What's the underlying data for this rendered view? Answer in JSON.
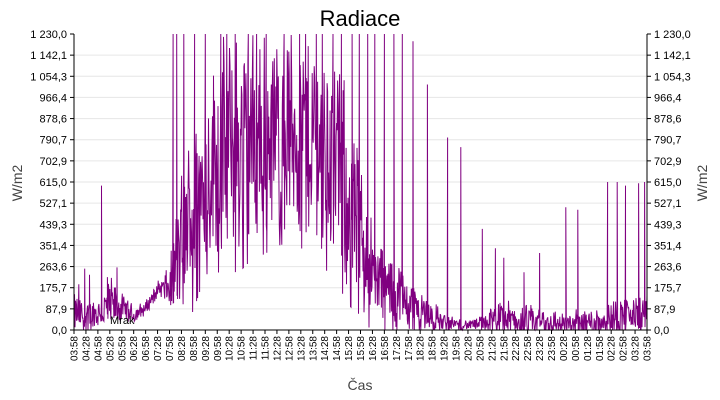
{
  "chart_data": {
    "type": "line",
    "title": "Radiace",
    "xlabel": "Čas",
    "ylabel_left": "W/m2",
    "ylabel_right": "W/m2",
    "y_ticks": [
      "0,0",
      "87,9",
      "175,7",
      "263,6",
      "351,4",
      "439,3",
      "527,1",
      "615,0",
      "702,9",
      "790,7",
      "878,6",
      "966,4",
      "1 054,3",
      "1 142,1",
      "1 230,0"
    ],
    "ylim": [
      0,
      1230
    ],
    "x_ticks": [
      "03:58",
      "04:28",
      "04:58",
      "05:28",
      "05:58",
      "06:28",
      "06:58",
      "07:28",
      "07:58",
      "08:28",
      "08:58",
      "09:28",
      "09:58",
      "10:28",
      "10:58",
      "11:28",
      "11:58",
      "12:28",
      "12:58",
      "13:28",
      "13:58",
      "14:28",
      "14:58",
      "15:28",
      "15:58",
      "16:28",
      "16:58",
      "17:28",
      "17:58",
      "18:28",
      "18:58",
      "19:28",
      "19:58",
      "20:28",
      "20:58",
      "21:28",
      "21:58",
      "22:28",
      "22:58",
      "23:28",
      "23:58",
      "00:28",
      "00:58",
      "01:28",
      "01:58",
      "02:28",
      "02:58",
      "03:28",
      "03:58"
    ],
    "grid": true,
    "legend_position": "bottom-left",
    "series": [
      {
        "name": "Mrak",
        "color": "#800080",
        "profile": [
          [
            0,
            70
          ],
          [
            1,
            60
          ],
          [
            2,
            70
          ],
          [
            3,
            100
          ],
          [
            4,
            90
          ],
          [
            5,
            60
          ],
          [
            6,
            90
          ],
          [
            7,
            175
          ],
          [
            8,
            170
          ],
          [
            9,
            360
          ],
          [
            10,
            500
          ],
          [
            11,
            650
          ],
          [
            12,
            720
          ],
          [
            13,
            770
          ],
          [
            14,
            790
          ],
          [
            15,
            800
          ],
          [
            16,
            820
          ],
          [
            17,
            830
          ],
          [
            18,
            840
          ],
          [
            19,
            820
          ],
          [
            20,
            800
          ],
          [
            21,
            760
          ],
          [
            22,
            700
          ],
          [
            23,
            560
          ],
          [
            24,
            420
          ],
          [
            25,
            230
          ],
          [
            26,
            180
          ],
          [
            27,
            150
          ],
          [
            28,
            110
          ],
          [
            29,
            90
          ],
          [
            30,
            50
          ],
          [
            31,
            35
          ],
          [
            32,
            25
          ],
          [
            33,
            20
          ],
          [
            34,
            25
          ],
          [
            35,
            40
          ],
          [
            36,
            50
          ],
          [
            37,
            40
          ],
          [
            38,
            40
          ],
          [
            39,
            35
          ],
          [
            40,
            30
          ],
          [
            41,
            25
          ],
          [
            42,
            25
          ],
          [
            43,
            30
          ],
          [
            44,
            40
          ],
          [
            45,
            50
          ],
          [
            46,
            60
          ],
          [
            47,
            60
          ],
          [
            48,
            60
          ]
        ],
        "noise": [
          [
            0,
            80
          ],
          [
            1,
            60
          ],
          [
            2,
            70
          ],
          [
            3,
            120
          ],
          [
            4,
            60
          ],
          [
            5,
            40
          ],
          [
            6,
            30
          ],
          [
            7,
            30
          ],
          [
            8,
            90
          ],
          [
            9,
            300
          ],
          [
            10,
            350
          ],
          [
            11,
            350
          ],
          [
            12,
            400
          ],
          [
            13,
            450
          ],
          [
            14,
            450
          ],
          [
            15,
            420
          ],
          [
            16,
            420
          ],
          [
            17,
            400
          ],
          [
            18,
            400
          ],
          [
            19,
            400
          ],
          [
            20,
            400
          ],
          [
            21,
            420
          ],
          [
            22,
            420
          ],
          [
            23,
            380
          ],
          [
            24,
            300
          ],
          [
            25,
            200
          ],
          [
            26,
            150
          ],
          [
            27,
            150
          ],
          [
            28,
            120
          ],
          [
            29,
            90
          ],
          [
            30,
            70
          ],
          [
            31,
            40
          ],
          [
            32,
            25
          ],
          [
            33,
            20
          ],
          [
            34,
            30
          ],
          [
            35,
            60
          ],
          [
            36,
            80
          ],
          [
            37,
            60
          ],
          [
            38,
            60
          ],
          [
            39,
            60
          ],
          [
            40,
            60
          ],
          [
            41,
            50
          ],
          [
            42,
            60
          ],
          [
            43,
            70
          ],
          [
            44,
            70
          ],
          [
            45,
            70
          ],
          [
            46,
            80
          ],
          [
            47,
            80
          ],
          [
            48,
            90
          ]
        ],
        "spikes": [
          [
            0.4,
            190
          ],
          [
            0.9,
            255
          ],
          [
            1.3,
            230
          ],
          [
            2.3,
            600
          ],
          [
            2.8,
            220
          ],
          [
            3.6,
            260
          ],
          [
            8.3,
            1230
          ],
          [
            8.6,
            1230
          ],
          [
            9.2,
            1230
          ],
          [
            10.1,
            1230
          ],
          [
            11.0,
            1230
          ],
          [
            12.3,
            1230
          ],
          [
            12.8,
            1230
          ],
          [
            13.5,
            1230
          ],
          [
            14.6,
            1230
          ],
          [
            15.3,
            1230
          ],
          [
            16.1,
            1230
          ],
          [
            17.6,
            1230
          ],
          [
            18.9,
            1230
          ],
          [
            19.4,
            1230
          ],
          [
            20.3,
            1230
          ],
          [
            20.8,
            1230
          ],
          [
            21.7,
            1230
          ],
          [
            22.4,
            1230
          ],
          [
            23.3,
            1230
          ],
          [
            23.9,
            1230
          ],
          [
            24.6,
            1230
          ],
          [
            25.2,
            1230
          ],
          [
            26.0,
            1230
          ],
          [
            26.8,
            1230
          ],
          [
            27.5,
            1230
          ],
          [
            28.4,
            1200
          ],
          [
            29.6,
            1020
          ],
          [
            31.3,
            800
          ],
          [
            32.4,
            760
          ],
          [
            34.2,
            420
          ],
          [
            35.3,
            340
          ],
          [
            36.0,
            300
          ],
          [
            37.7,
            240
          ],
          [
            39.0,
            320
          ],
          [
            41.2,
            510
          ],
          [
            42.2,
            500
          ],
          [
            44.7,
            615
          ],
          [
            45.5,
            615
          ],
          [
            46.2,
            600
          ],
          [
            47.3,
            610
          ],
          [
            47.8,
            615
          ]
        ]
      }
    ]
  }
}
